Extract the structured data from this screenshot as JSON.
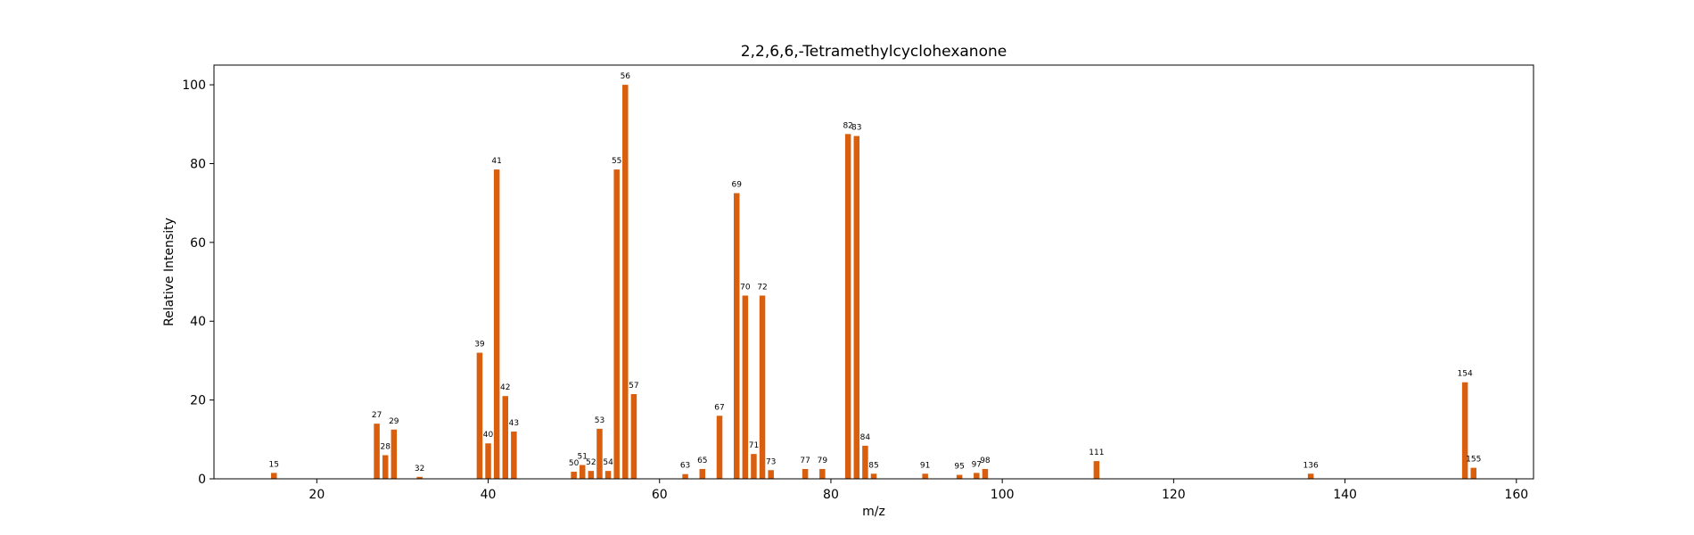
{
  "chart_data": {
    "type": "bar",
    "title": "2,2,6,6,-Tetramethylcyclohexanone",
    "xlabel": "m/z",
    "ylabel": "Relative Intensity",
    "xlim": [
      8,
      162
    ],
    "ylim": [
      0,
      105
    ],
    "xticks": [
      20,
      40,
      60,
      80,
      100,
      120,
      140,
      160
    ],
    "yticks": [
      0,
      20,
      40,
      60,
      80,
      100
    ],
    "grid": false,
    "bar_color": "#d95f0e",
    "series": [
      {
        "x": [
          15,
          27,
          28,
          29,
          32,
          39,
          40,
          41,
          42,
          43,
          50,
          51,
          52,
          53,
          54,
          55,
          56,
          57,
          63,
          65,
          67,
          69,
          70,
          71,
          72,
          73,
          77,
          79,
          82,
          83,
          84,
          85,
          91,
          95,
          97,
          98,
          111,
          136,
          154,
          155
        ],
        "y": [
          1.5,
          14,
          6,
          12.5,
          0.5,
          32,
          9,
          78.5,
          21,
          12,
          1.8,
          3.5,
          2,
          12.7,
          2,
          78.5,
          100,
          21.5,
          1.2,
          2.5,
          16,
          72.5,
          46.5,
          6.3,
          46.5,
          2.2,
          2.5,
          2.5,
          87.5,
          87,
          8.4,
          1.3,
          1.3,
          1,
          1.5,
          2.5,
          4.5,
          1.3,
          24.5,
          2.8
        ]
      }
    ]
  }
}
